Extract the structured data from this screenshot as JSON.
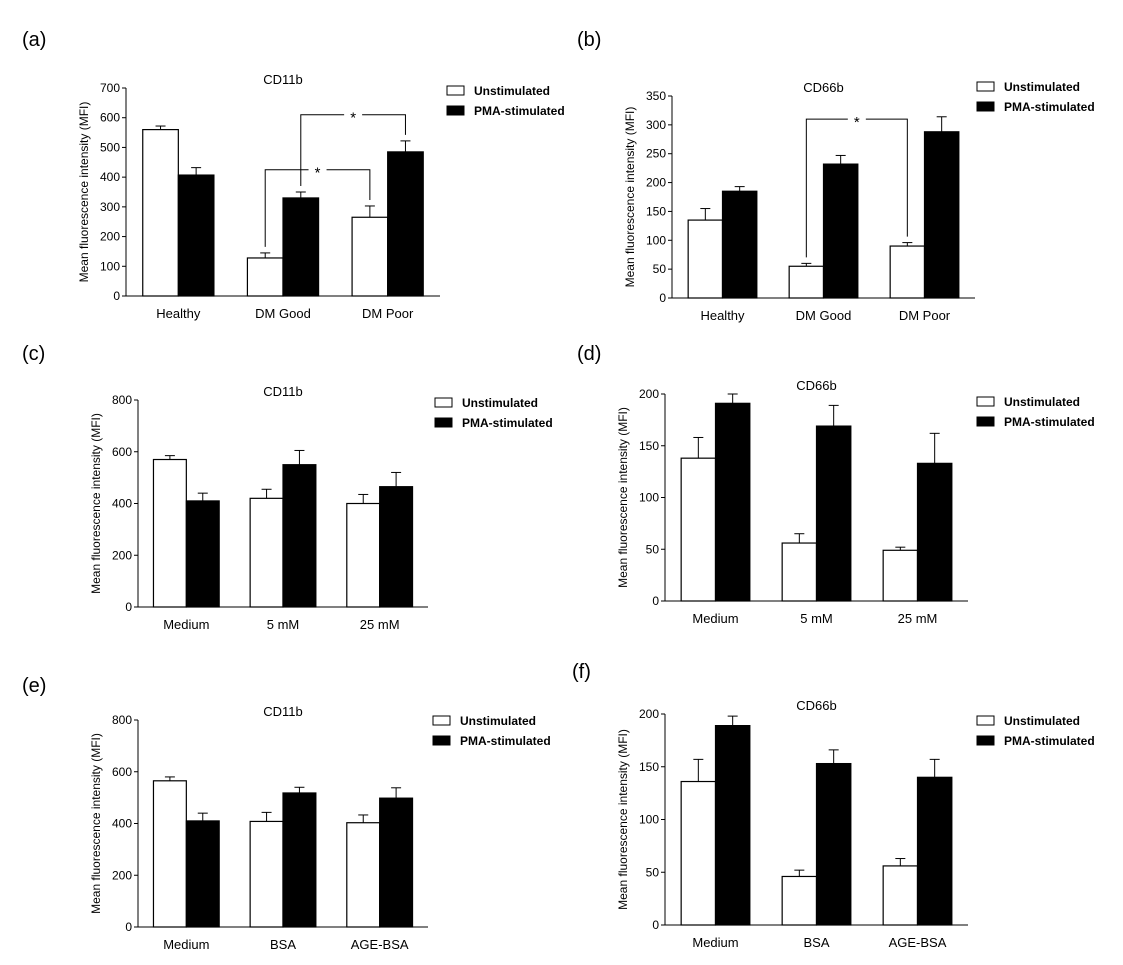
{
  "colors": {
    "unstimulated": "#ffffff",
    "pma": "#000000",
    "stroke": "#000000"
  },
  "chart_data": [
    {
      "panel": "(a)",
      "type": "bar",
      "title": "CD11b",
      "ylabel": "Mean fluorescence intensity (MFI)",
      "ylim": [
        0,
        700
      ],
      "yticks": [
        0,
        100,
        200,
        300,
        400,
        500,
        600,
        700
      ],
      "categories": [
        "Healthy",
        "DM Good",
        "DM Poor"
      ],
      "series": [
        {
          "name": "Unstimulated",
          "values": [
            560,
            128,
            265
          ],
          "errors": [
            12,
            17,
            38
          ]
        },
        {
          "name": "PMA-stimulated",
          "values": [
            407,
            330,
            485
          ],
          "errors": [
            25,
            20,
            37
          ]
        }
      ],
      "annotations": [
        {
          "label": "*",
          "from": [
            1,
            0
          ],
          "to": [
            2,
            0
          ],
          "y": 425
        },
        {
          "label": "*",
          "from": [
            1,
            1
          ],
          "to": [
            2,
            1
          ],
          "y": 610
        }
      ]
    },
    {
      "panel": "(b)",
      "type": "bar",
      "title": "CD66b",
      "ylabel": "Mean fluorescence intensity (MFI)",
      "ylim": [
        0,
        350
      ],
      "yticks": [
        0,
        50,
        100,
        150,
        200,
        250,
        300,
        350
      ],
      "categories": [
        "Healthy",
        "DM Good",
        "DM Poor"
      ],
      "series": [
        {
          "name": "Unstimulated",
          "values": [
            135,
            55,
            90
          ],
          "errors": [
            20,
            5,
            6
          ]
        },
        {
          "name": "PMA-stimulated",
          "values": [
            185,
            232,
            288
          ],
          "errors": [
            8,
            15,
            26
          ]
        }
      ],
      "annotations": [
        {
          "label": "*",
          "from": [
            1,
            0
          ],
          "to": [
            2,
            0
          ],
          "y": 310
        }
      ]
    },
    {
      "panel": "(c)",
      "type": "bar",
      "title": "CD11b",
      "ylabel": "Mean fluorescence intensity (MFI)",
      "ylim": [
        0,
        800
      ],
      "yticks": [
        0,
        200,
        400,
        600,
        800
      ],
      "categories": [
        "Medium",
        "5 mM",
        "25 mM"
      ],
      "series": [
        {
          "name": "Unstimulated",
          "values": [
            570,
            420,
            400
          ],
          "errors": [
            15,
            35,
            35
          ]
        },
        {
          "name": "PMA-stimulated",
          "values": [
            410,
            550,
            465
          ],
          "errors": [
            30,
            55,
            55
          ]
        }
      ],
      "annotations": []
    },
    {
      "panel": "(d)",
      "type": "bar",
      "title": "CD66b",
      "ylabel": "Mean fluorescence intensity (MFI)",
      "ylim": [
        0,
        200
      ],
      "yticks": [
        0,
        50,
        100,
        150,
        200
      ],
      "categories": [
        "Medium",
        "5 mM",
        "25 mM"
      ],
      "series": [
        {
          "name": "Unstimulated",
          "values": [
            138,
            56,
            49
          ],
          "errors": [
            20,
            9,
            3
          ]
        },
        {
          "name": "PMA-stimulated",
          "values": [
            191,
            169,
            133
          ],
          "errors": [
            9,
            20,
            29
          ]
        }
      ],
      "annotations": []
    },
    {
      "panel": "(e)",
      "type": "bar",
      "title": "CD11b",
      "ylabel": "Mean fluorescence intensity (MFI)",
      "ylim": [
        0,
        800
      ],
      "yticks": [
        0,
        200,
        400,
        600,
        800
      ],
      "categories": [
        "Medium",
        "BSA",
        "AGE-BSA"
      ],
      "series": [
        {
          "name": "Unstimulated",
          "values": [
            565,
            408,
            403
          ],
          "errors": [
            15,
            35,
            30
          ]
        },
        {
          "name": "PMA-stimulated",
          "values": [
            410,
            518,
            498
          ],
          "errors": [
            30,
            22,
            40
          ]
        }
      ],
      "annotations": []
    },
    {
      "panel": "(f)",
      "type": "bar",
      "title": "CD66b",
      "ylabel": "Mean fluorescence intensity (MFI)",
      "ylim": [
        0,
        200
      ],
      "yticks": [
        0,
        50,
        100,
        150,
        200
      ],
      "categories": [
        "Medium",
        "BSA",
        "AGE-BSA"
      ],
      "series": [
        {
          "name": "Unstimulated",
          "values": [
            136,
            46,
            56
          ],
          "errors": [
            21,
            6,
            7
          ]
        },
        {
          "name": "PMA-stimulated",
          "values": [
            189,
            153,
            140
          ],
          "errors": [
            9,
            13,
            17
          ]
        }
      ],
      "annotations": []
    }
  ]
}
